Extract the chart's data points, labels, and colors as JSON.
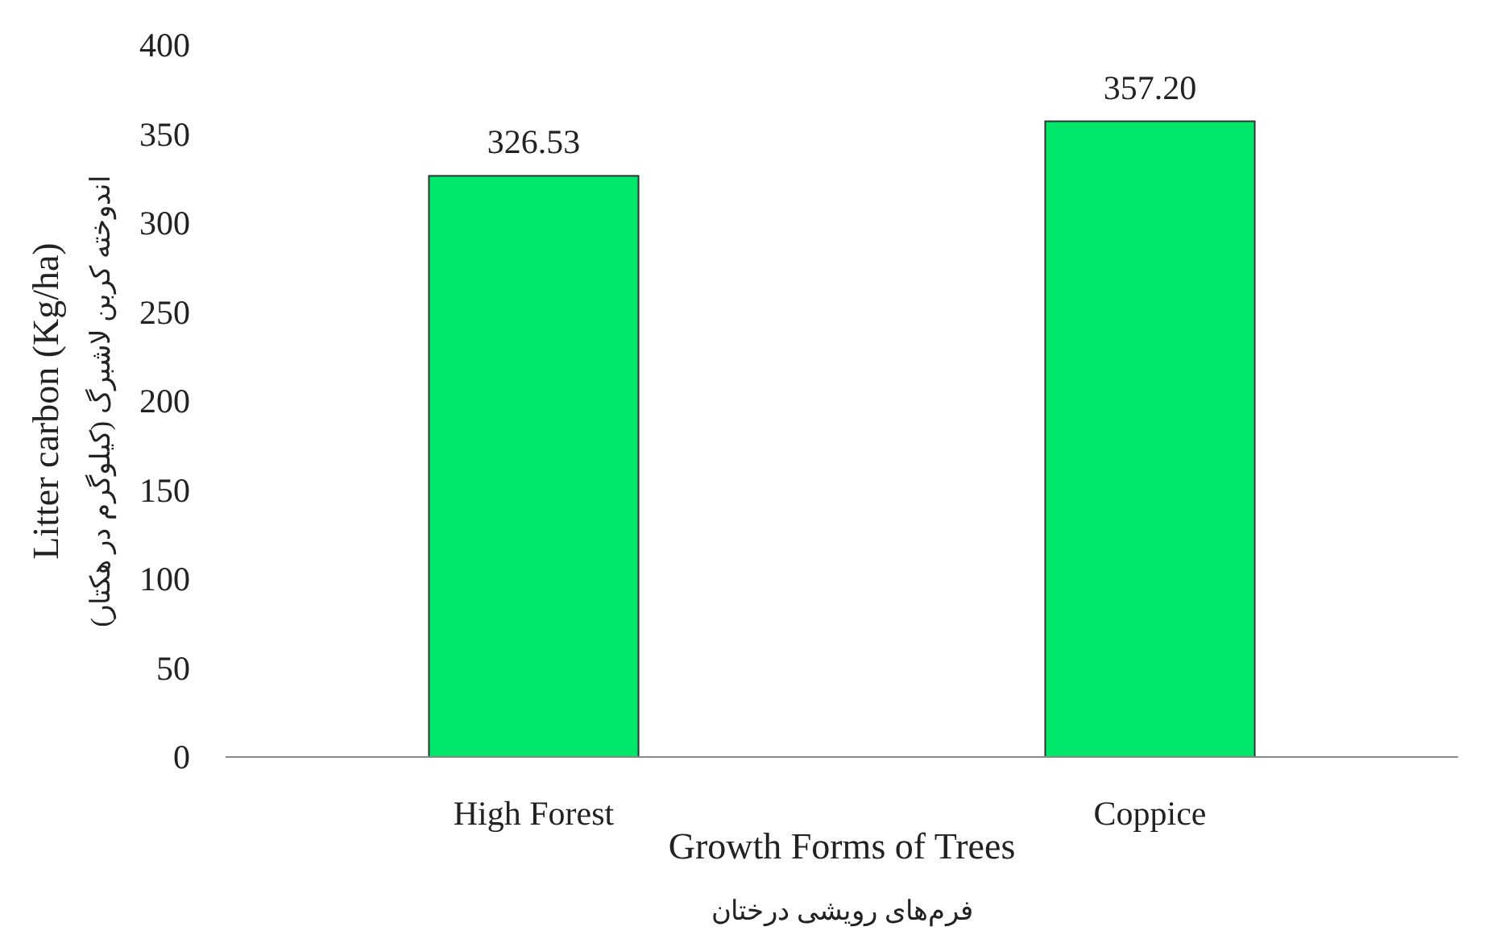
{
  "chart_data": {
    "type": "bar",
    "xlabel": "Growth Forms of Trees\nفرم‌های رویشی درختان",
    "ylabel": "Litter carbon (Kg/ha)\nاندوخته کربن لاشبرگ (کیلوگرم در هکتار)",
    "categories": [
      "High Forest",
      "Coppice"
    ],
    "values": [
      326.53,
      357.2
    ],
    "value_labels": [
      "326.53",
      "357.20"
    ],
    "color": "#00e86c",
    "ylim": [
      0,
      400
    ],
    "yticks": [
      0,
      50,
      100,
      150,
      200,
      250,
      300,
      350,
      400
    ],
    "grid": false
  }
}
